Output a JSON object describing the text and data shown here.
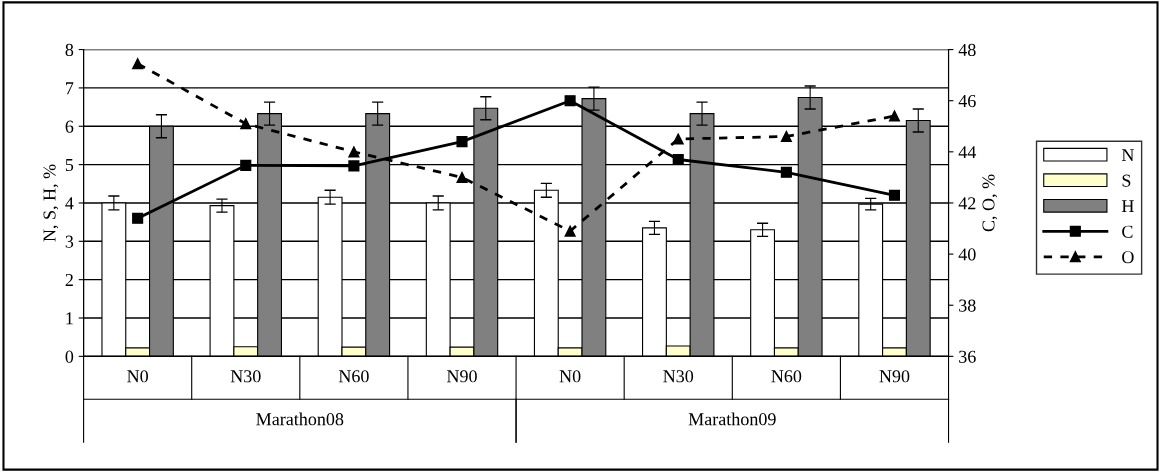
{
  "chart_data": {
    "type": "bar",
    "ylabel": "N, S, H, %",
    "y2label": "C, O, %",
    "categories": [
      "N0",
      "N30",
      "N60",
      "N90",
      "N0",
      "N30",
      "N60",
      "N90"
    ],
    "annotations": [
      "Marathon08",
      "Marathon09"
    ],
    "series": [
      {
        "name": "N",
        "color": "#ffffff",
        "values": [
          4.0,
          3.93,
          4.15,
          4.0,
          4.33,
          3.35,
          3.3,
          3.97
        ],
        "errors": [
          0.18,
          0.17,
          0.18,
          0.18,
          0.18,
          0.17,
          0.17,
          0.15
        ]
      },
      {
        "name": "S",
        "color": "#ffffcc",
        "values": [
          0.22,
          0.25,
          0.24,
          0.24,
          0.22,
          0.27,
          0.22,
          0.22
        ]
      },
      {
        "name": "H",
        "color": "#808080",
        "values": [
          6.0,
          6.33,
          6.33,
          6.47,
          6.72,
          6.33,
          6.75,
          6.15
        ],
        "errors": [
          0.3,
          0.3,
          0.3,
          0.3,
          0.3,
          0.3,
          0.3,
          0.3
        ]
      },
      {
        "name": "C",
        "type": "line",
        "axis": "y2",
        "color": "#000000",
        "marker": "square",
        "line_style": "solid",
        "values": [
          41.4,
          43.47,
          43.45,
          44.4,
          46.0,
          43.7,
          43.2,
          42.3
        ]
      },
      {
        "name": "O",
        "type": "line",
        "axis": "y2",
        "color": "#000000",
        "marker": "triangle",
        "line_style": "dashed",
        "values": [
          47.45,
          45.1,
          44.0,
          43.0,
          40.9,
          44.5,
          44.6,
          45.4
        ]
      }
    ],
    "ylim": [
      0,
      8
    ],
    "yticks": [
      0,
      1,
      2,
      3,
      4,
      5,
      6,
      7,
      8
    ],
    "y2lim": [
      36,
      48
    ],
    "y2ticks": [
      36,
      38,
      40,
      42,
      44,
      46,
      48
    ],
    "grid": "y",
    "legend": "right"
  }
}
